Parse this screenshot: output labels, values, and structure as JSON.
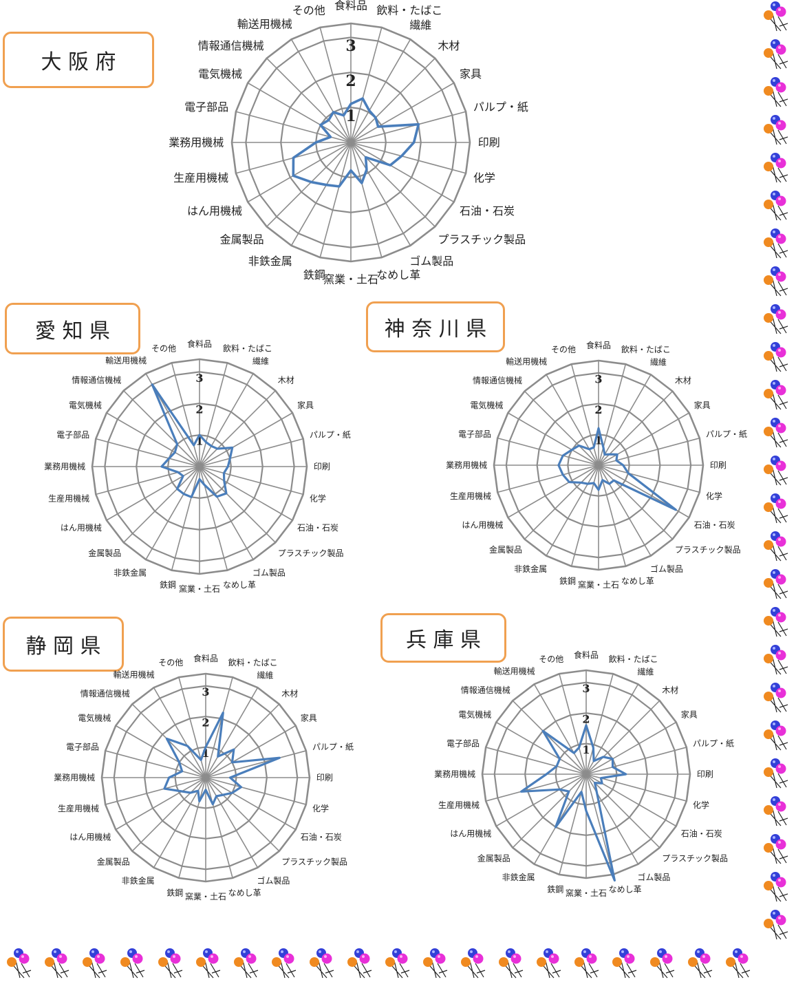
{
  "categories": [
    "食料品",
    "飲料・たばこ",
    "繊維",
    "木材",
    "家具",
    "パルプ・紙",
    "印刷",
    "化学",
    "石油・石炭",
    "プラスチック製品",
    "ゴム製品",
    "なめし革",
    "窯業・土石",
    "鉄鋼",
    "非鉄金属",
    "金属製品",
    "はん用機械",
    "生産用機械",
    "業務用機械",
    "電子部品",
    "電気機械",
    "情報通信機械",
    "輸送用機械",
    "その他"
  ],
  "ring_labels": [
    "1",
    "2",
    "3"
  ],
  "colors": {
    "series": "#4a7ebb",
    "grid": "#8c8c8c",
    "box_border": "#f0a050"
  },
  "decoration_icon": "balloon-icon",
  "chart_data": [
    {
      "type": "radar",
      "title": "大 阪 府",
      "rlim": [
        0,
        3.4
      ],
      "values": [
        1.1,
        1.3,
        1.05,
        1.0,
        0.9,
        2.0,
        1.8,
        1.5,
        1.3,
        0.6,
        0.9,
        1.2,
        0.8,
        1.3,
        1.4,
        1.6,
        1.9,
        1.7,
        1.0,
        0.6,
        1.0,
        0.9,
        1.0,
        0.8
      ]
    },
    {
      "type": "radar",
      "title": "愛 知 県",
      "rlim": [
        0,
        3.4
      ],
      "values": [
        1.0,
        0.8,
        0.75,
        0.8,
        1.2,
        1.0,
        0.9,
        0.8,
        0.9,
        1.2,
        1.1,
        0.6,
        0.4,
        1.0,
        1.0,
        1.0,
        0.6,
        0.7,
        1.2,
        1.0,
        0.9,
        1.0,
        3.0,
        0.7
      ]
    },
    {
      "type": "radar",
      "title": "神 奈 川 県",
      "rlim": [
        0,
        3.4
      ],
      "values": [
        1.2,
        0.6,
        0.4,
        0.5,
        0.7,
        0.6,
        0.8,
        1.0,
        2.9,
        0.7,
        0.7,
        0.5,
        0.8,
        0.6,
        0.7,
        0.8,
        1.1,
        1.2,
        1.3,
        1.2,
        1.0,
        0.9,
        0.6,
        0.6
      ]
    },
    {
      "type": "radar",
      "title": "静 岡 県",
      "rlim": [
        0,
        3.4
      ],
      "values": [
        1.0,
        2.2,
        0.8,
        1.3,
        1.0,
        2.5,
        0.8,
        1.2,
        1.0,
        0.8,
        0.7,
        0.9,
        0.4,
        0.8,
        0.5,
        0.7,
        0.9,
        1.4,
        1.2,
        0.8,
        1.0,
        1.8,
        1.2,
        0.6
      ]
    },
    {
      "type": "radar",
      "title": "兵 庫 県",
      "rlim": [
        0,
        3.4
      ],
      "values": [
        1.6,
        0.9,
        0.5,
        0.8,
        1.0,
        0.9,
        1.3,
        0.5,
        0.6,
        0.4,
        0.7,
        3.6,
        1.2,
        0.6,
        2.0,
        0.8,
        1.0,
        2.2,
        1.3,
        1.0,
        1.0,
        2.0,
        0.8,
        0.9
      ]
    }
  ]
}
